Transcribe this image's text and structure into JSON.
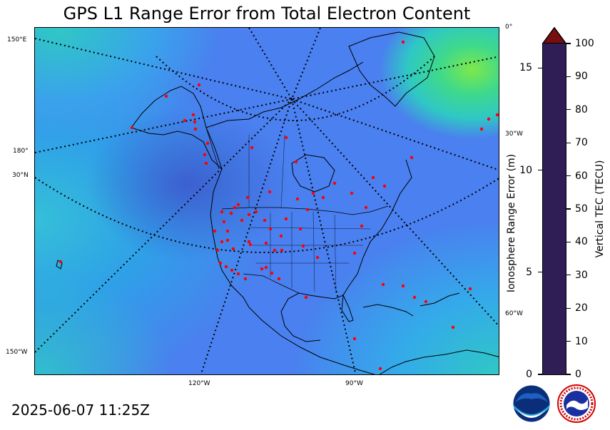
{
  "title": "GPS L1 Range Error from Total Electron Content",
  "timestamp": "2025-06-07 11:25Z",
  "map": {
    "graticule_labels_left": [
      "150°E",
      "180°",
      "30°N",
      "150°W"
    ],
    "graticule_labels_right": [
      "0°",
      "30°W",
      "60°W"
    ],
    "graticule_labels_bottom": [
      "120°W",
      "90°W"
    ],
    "station_marker_color": "#ff0000"
  },
  "colorbar": {
    "label": "Vertical TEC (TECU)",
    "tec_ticks": [
      "0",
      "10",
      "20",
      "30",
      "40",
      "50",
      "60",
      "70",
      "80",
      "90",
      "100"
    ],
    "tec_range": [
      0,
      100
    ],
    "range_error_label": "Ionosphere Range Error (m)",
    "range_error_ticks": [
      "0",
      "5",
      "10",
      "15"
    ],
    "range_error_max": 16.2,
    "extend": "max"
  },
  "logos": [
    "noaa-logo",
    "national-weather-service-logo"
  ]
}
